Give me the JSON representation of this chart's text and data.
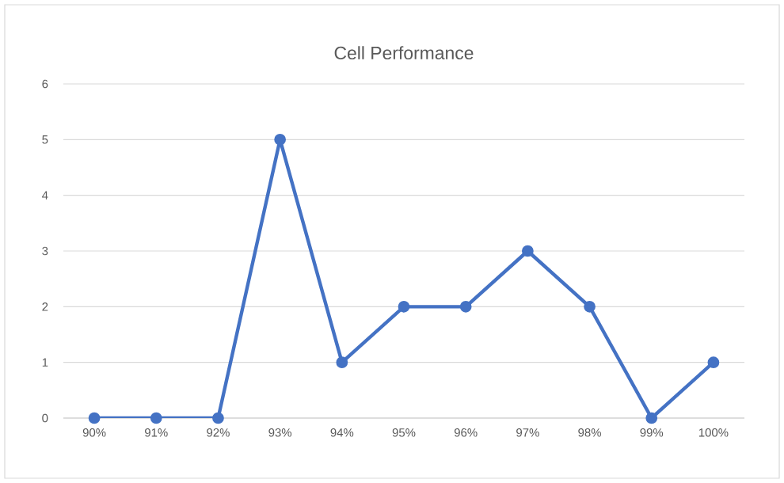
{
  "chart_data": {
    "type": "line",
    "title": "Cell Performance",
    "categories": [
      "90%",
      "91%",
      "92%",
      "93%",
      "94%",
      "95%",
      "96%",
      "97%",
      "98%",
      "99%",
      "100%"
    ],
    "series": [
      {
        "color": "#4472c4",
        "values": [
          0,
          0,
          0,
          5,
          1,
          2,
          2,
          3,
          2,
          0,
          1
        ]
      }
    ],
    "ylim": [
      0,
      6
    ],
    "yticks": [
      0,
      1,
      2,
      3,
      4,
      5,
      6
    ],
    "grid": "y",
    "marker": "circle",
    "line_style": "solid"
  }
}
